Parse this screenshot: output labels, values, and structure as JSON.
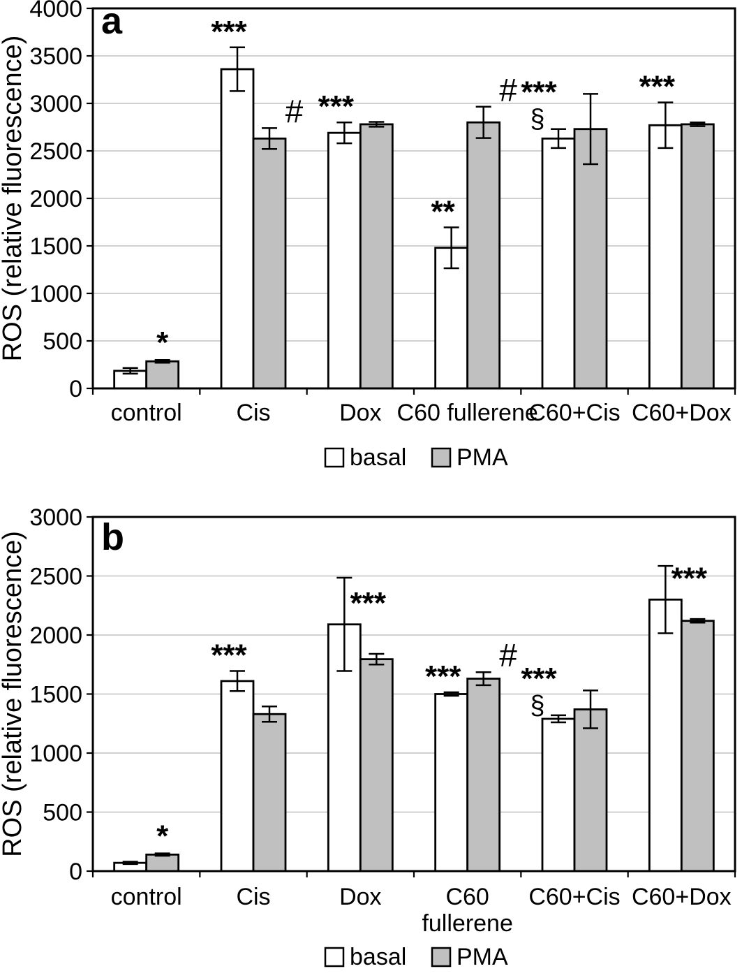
{
  "figure": {
    "title": "",
    "ylabel": "ROS (relative fluorescence)",
    "legend_labels": [
      "basal",
      "PMA"
    ]
  },
  "colors": {
    "basal_fill": "#ffffff",
    "pma_fill": "#c0c0c0",
    "bar_border": "#000000",
    "gridline": "#c0c0c0",
    "axis": "#000000",
    "background": "#ffffff"
  },
  "chart_data": [
    {
      "type": "bar",
      "panel_label": "a",
      "title": "",
      "xlabel": "",
      "ylabel": "ROS (relative fluorescence)",
      "ylim": [
        0,
        4000
      ],
      "ytick_step": 500,
      "grid": true,
      "legend_position": "bottom",
      "legend_labels": [
        "basal",
        "PMA"
      ],
      "categories": [
        "control",
        "Cis",
        "Dox",
        "C60 fullerene",
        "C60+Cis",
        "C60+Dox"
      ],
      "series": [
        {
          "name": "basal",
          "fill": "#ffffff",
          "values": [
            185,
            3360,
            2690,
            1480,
            2630,
            2770
          ],
          "errors": [
            30,
            230,
            110,
            215,
            100,
            240
          ],
          "annotations": [
            "",
            "***",
            "***",
            "**",
            "***\n§",
            "***"
          ]
        },
        {
          "name": "PMA",
          "fill": "#c0c0c0",
          "values": [
            285,
            2630,
            2780,
            2800,
            2730,
            2780
          ],
          "errors": [
            15,
            110,
            25,
            165,
            370,
            20
          ],
          "annotations": [
            "*",
            "#",
            "",
            "#",
            "",
            ""
          ]
        }
      ]
    },
    {
      "type": "bar",
      "panel_label": "b",
      "title": "",
      "xlabel": "",
      "ylabel": "ROS (relative fluorescence)",
      "ylim": [
        0,
        3000
      ],
      "ytick_step": 500,
      "grid": true,
      "legend_position": "bottom",
      "legend_labels": [
        "basal",
        "PMA"
      ],
      "categories": [
        "control",
        "Cis",
        "Dox",
        "C60\nfullerene",
        "C60+Cis",
        "C60+Dox"
      ],
      "series": [
        {
          "name": "basal",
          "fill": "#ffffff",
          "values": [
            70,
            1610,
            2090,
            1500,
            1290,
            2300
          ],
          "errors": [
            10,
            85,
            395,
            15,
            30,
            285
          ],
          "annotations": [
            "",
            "***",
            "***",
            "***",
            "***\n§",
            "***"
          ]
        },
        {
          "name": "PMA",
          "fill": "#c0c0c0",
          "values": [
            140,
            1330,
            1795,
            1630,
            1370,
            2120
          ],
          "errors": [
            10,
            65,
            45,
            55,
            160,
            15
          ],
          "annotations": [
            "*",
            "",
            "",
            "#",
            "",
            ""
          ]
        }
      ]
    }
  ]
}
